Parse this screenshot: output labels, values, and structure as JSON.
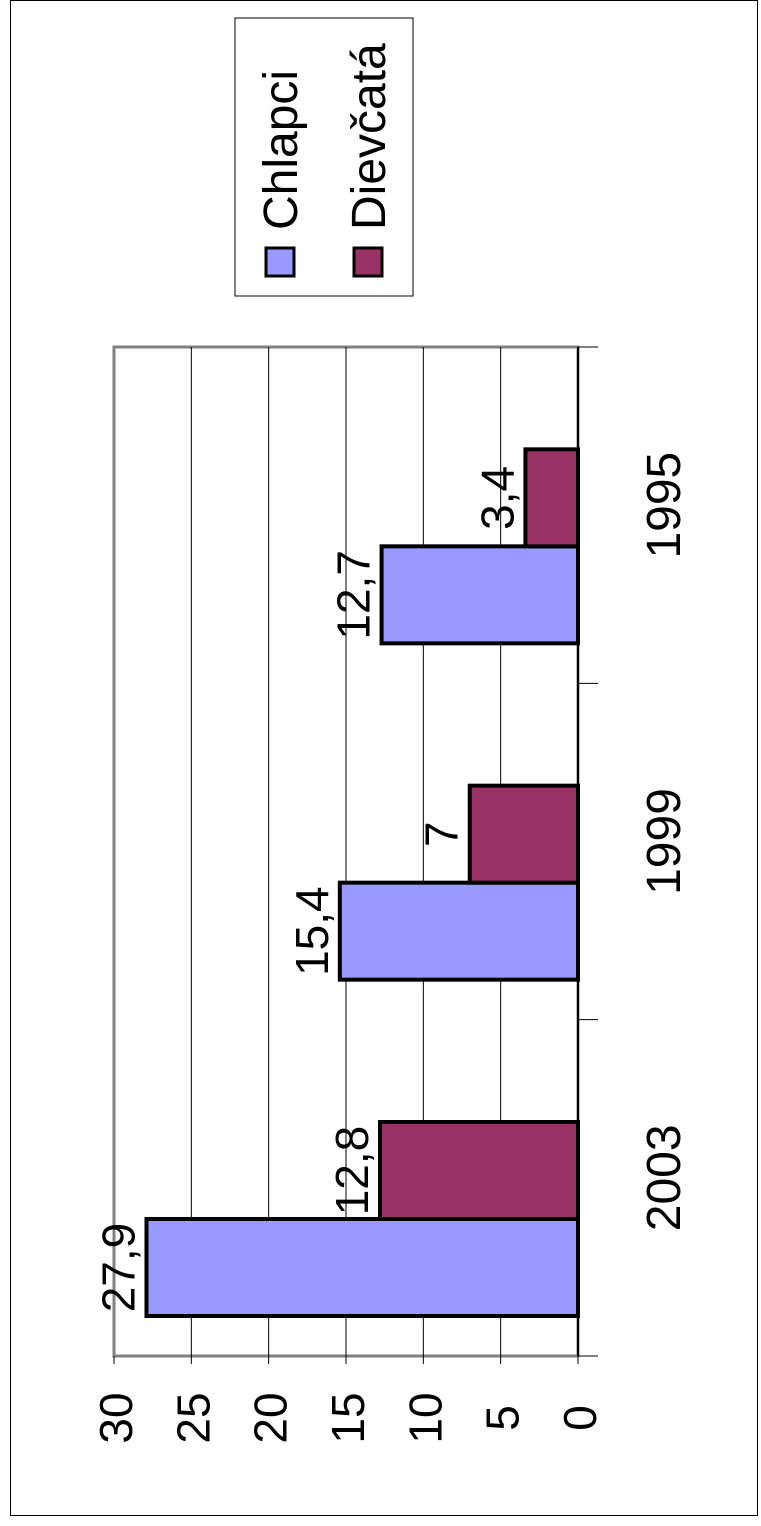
{
  "chart_data": {
    "type": "bar",
    "orientation": "rotated-90-ccw",
    "categories": [
      "1995",
      "1999",
      "2003"
    ],
    "series": [
      {
        "name": "Chlapci",
        "values": [
          12.7,
          15.4,
          27.9
        ],
        "value_labels": [
          "12,7",
          "15,4",
          "27,9"
        ],
        "color": "#9999ff"
      },
      {
        "name": "Dievčatá",
        "values": [
          3.4,
          7,
          12.8
        ],
        "value_labels": [
          "3,4",
          "7",
          "12,8"
        ],
        "color": "#993366"
      }
    ],
    "ylim": [
      0,
      30
    ],
    "yticks": [
      0,
      5,
      10,
      15,
      20,
      25,
      30
    ],
    "ytick_labels": [
      "0",
      "5",
      "10",
      "15",
      "20",
      "25",
      "30"
    ],
    "grid": true,
    "legend_position": "top-right"
  }
}
